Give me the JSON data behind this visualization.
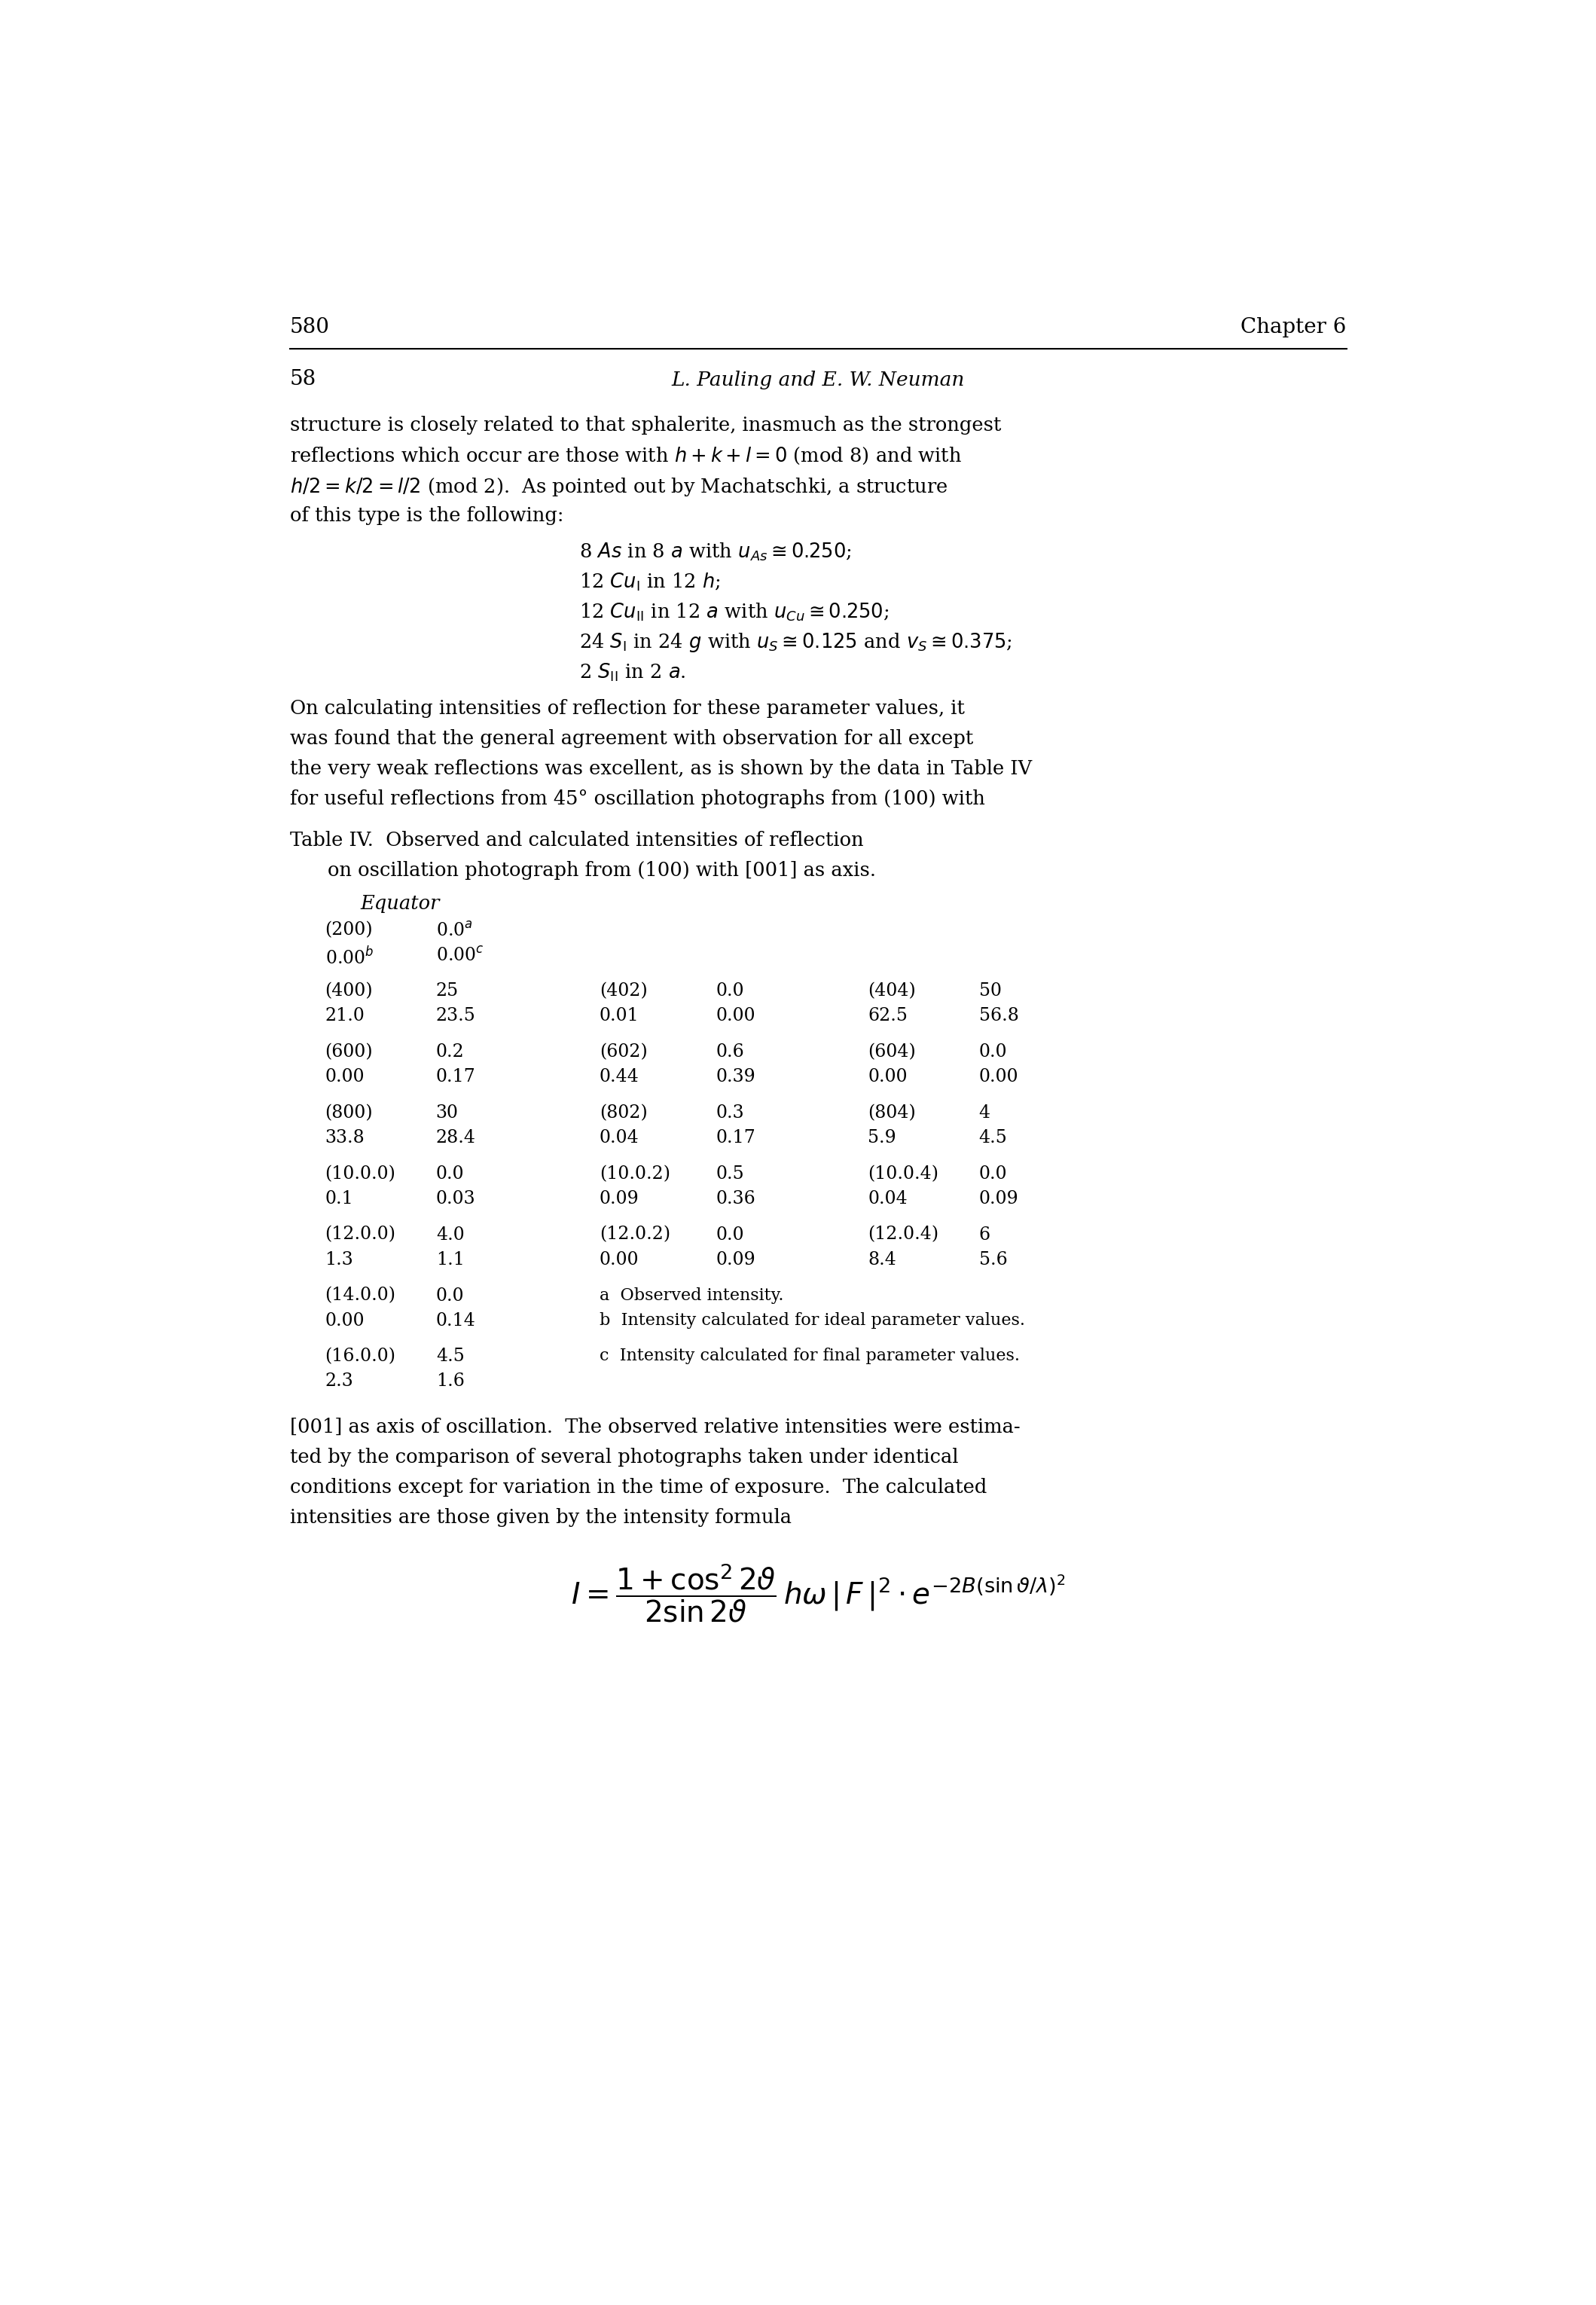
{
  "page_num_left": "580",
  "page_num_right": "Chapter 6",
  "inner_page_num": "58",
  "inner_header": "L. Pauling and E. W. Neuman",
  "bg_color": "#ffffff",
  "text_color": "#000000",
  "footnote_a": "a  Observed intensity.",
  "footnote_b": "b  Intensity calculated for ideal parameter values.",
  "footnote_c": "c  Intensity calculated for final parameter values.",
  "para3_line1": "[001] as axis of oscillation.  The observed relative intensities were estima-",
  "para3_line2": "ted by the comparison of several photographs taken under identical",
  "para3_line3": "conditions except for variation in the time of exposure.  The calculated",
  "para3_line4": "intensities are those given by the intensity formula"
}
